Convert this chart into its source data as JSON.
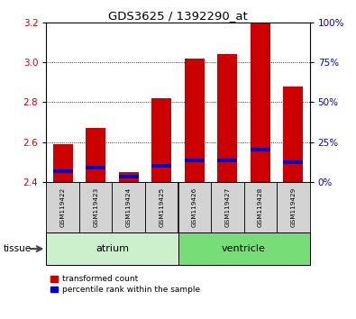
{
  "title": "GDS3625 / 1392290_at",
  "samples": [
    "GSM119422",
    "GSM119423",
    "GSM119424",
    "GSM119425",
    "GSM119426",
    "GSM119427",
    "GSM119428",
    "GSM119429"
  ],
  "red_values": [
    2.59,
    2.67,
    2.45,
    2.82,
    3.02,
    3.04,
    3.2,
    2.88
  ],
  "blue_values": [
    2.445,
    2.462,
    2.418,
    2.472,
    2.498,
    2.498,
    2.552,
    2.49
  ],
  "blue_heights": [
    0.018,
    0.018,
    0.018,
    0.018,
    0.018,
    0.018,
    0.018,
    0.018
  ],
  "y_min": 2.4,
  "y_max": 3.2,
  "y_ticks_left": [
    2.4,
    2.6,
    2.8,
    3.0,
    3.2
  ],
  "y_ticks_right": [
    0,
    25,
    50,
    75,
    100
  ],
  "y_ticks_right_labels": [
    "0%",
    "25%",
    "50%",
    "75%",
    "100%"
  ],
  "groups": [
    {
      "label": "atrium",
      "start": 0,
      "end": 4,
      "color": "#ccf0cc"
    },
    {
      "label": "ventricle",
      "start": 4,
      "end": 8,
      "color": "#77dd77"
    }
  ],
  "bar_color_red": "#cc0000",
  "bar_color_blue": "#0000cc",
  "bar_width": 0.6,
  "background_color": "#ffffff",
  "tick_label_color_left": "#cc0000",
  "tick_label_color_right": "#0000cc",
  "legend_red_label": "transformed count",
  "legend_blue_label": "percentile rank within the sample",
  "tissue_label": "tissue",
  "sample_box_color": "#d3d3d3",
  "grid_lines": [
    2.6,
    2.8,
    3.0
  ]
}
